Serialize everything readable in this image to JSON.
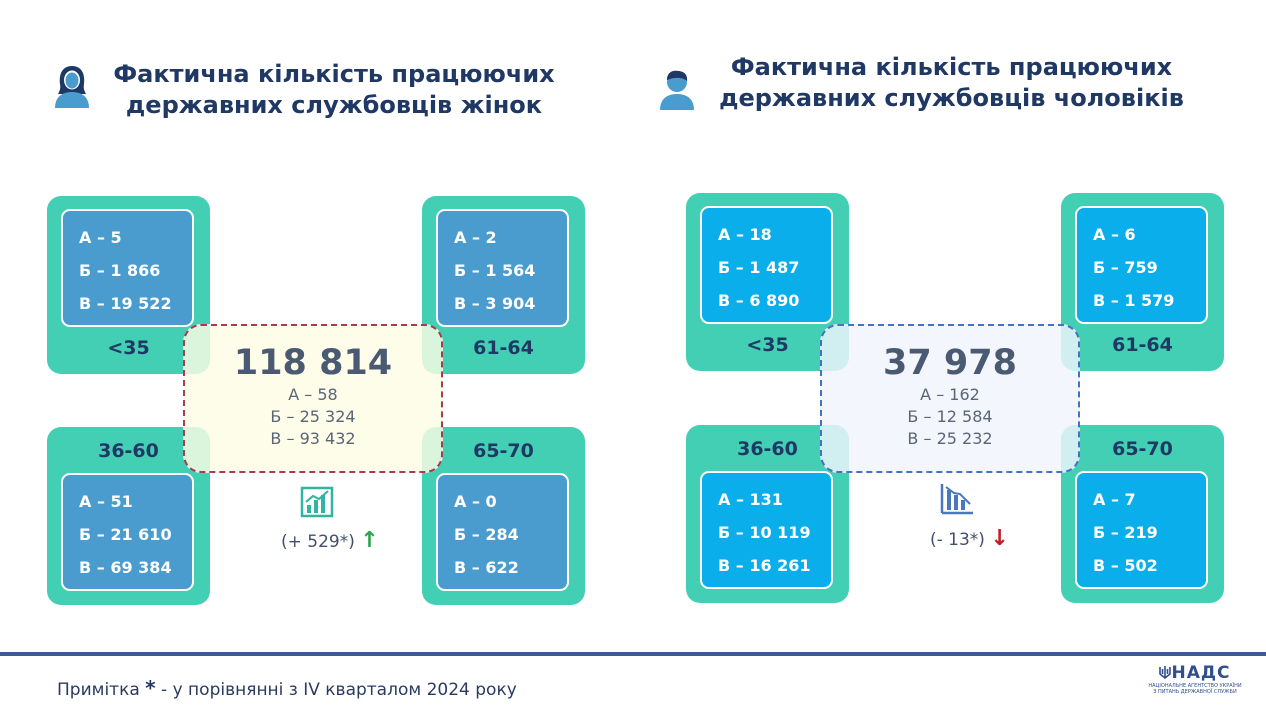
{
  "women": {
    "title_line1": "Фактична кількість працюючих",
    "title_line2": "державних службовців жінок",
    "total": "118 814",
    "totals": [
      "А – 58",
      "Б – 25 324",
      "В – 93 432"
    ],
    "change": "(+ 529*)",
    "arrow": "↑",
    "groups": {
      "under35": {
        "age": "<35",
        "lines": [
          "А – 5",
          "Б – 1 866",
          "В – 19 522"
        ]
      },
      "g61_64": {
        "age": "61-64",
        "lines": [
          "А – 2",
          "Б – 1 564",
          "В – 3 904"
        ]
      },
      "g36_60": {
        "age": "36-60",
        "lines": [
          "А – 51",
          "Б – 21 610",
          "В – 69 384"
        ]
      },
      "g65_70": {
        "age": "65-70",
        "lines": [
          "А – 0",
          "Б – 284",
          "В – 622"
        ]
      }
    }
  },
  "men": {
    "title_line1": "Фактична кількість працюючих",
    "title_line2": "державних службовців чоловіків",
    "total": "37 978",
    "totals": [
      "А – 162",
      "Б – 12 584",
      "В – 25 232"
    ],
    "change": "(- 13*)",
    "arrow": "↓",
    "groups": {
      "under35": {
        "age": "<35",
        "lines": [
          "А – 18",
          "Б – 1 487",
          "В – 6 890"
        ]
      },
      "g61_64": {
        "age": "61-64",
        "lines": [
          "А – 6",
          "Б – 759",
          "В – 1 579"
        ]
      },
      "g36_60": {
        "age": "36-60",
        "lines": [
          "А – 131",
          "Б – 10 119",
          "В – 16 261"
        ]
      },
      "g65_70": {
        "age": "65-70",
        "lines": [
          "А – 7",
          "Б – 219",
          "В – 502"
        ]
      }
    }
  },
  "footer": {
    "note_prefix": "Примітка",
    "note_star": "*",
    "note_text": "- у порівнянні з IV кварталом 2024 року",
    "logo_text": "НАДС",
    "logo_sub1": "НАЦІОНАЛЬНЕ АГЕНТСТВО УКРАЇНИ",
    "logo_sub2": "З ПИТАНЬ ДЕРЖАВНОЇ СЛУЖБИ"
  },
  "colors": {
    "card_outer": "#43cfb4",
    "card_inner_women": "#4a9ccf",
    "card_inner_men": "#09aeea",
    "title": "#1f3864",
    "increase_arrow": "#2ea44f",
    "decrease_arrow": "#c0202c"
  },
  "icons": {
    "women_person": "female-person-icon",
    "men_person": "male-person-icon",
    "increase_chart": "chart-increase-icon",
    "decrease_chart": "chart-decrease-icon",
    "logo_emblem": "trident-icon"
  }
}
